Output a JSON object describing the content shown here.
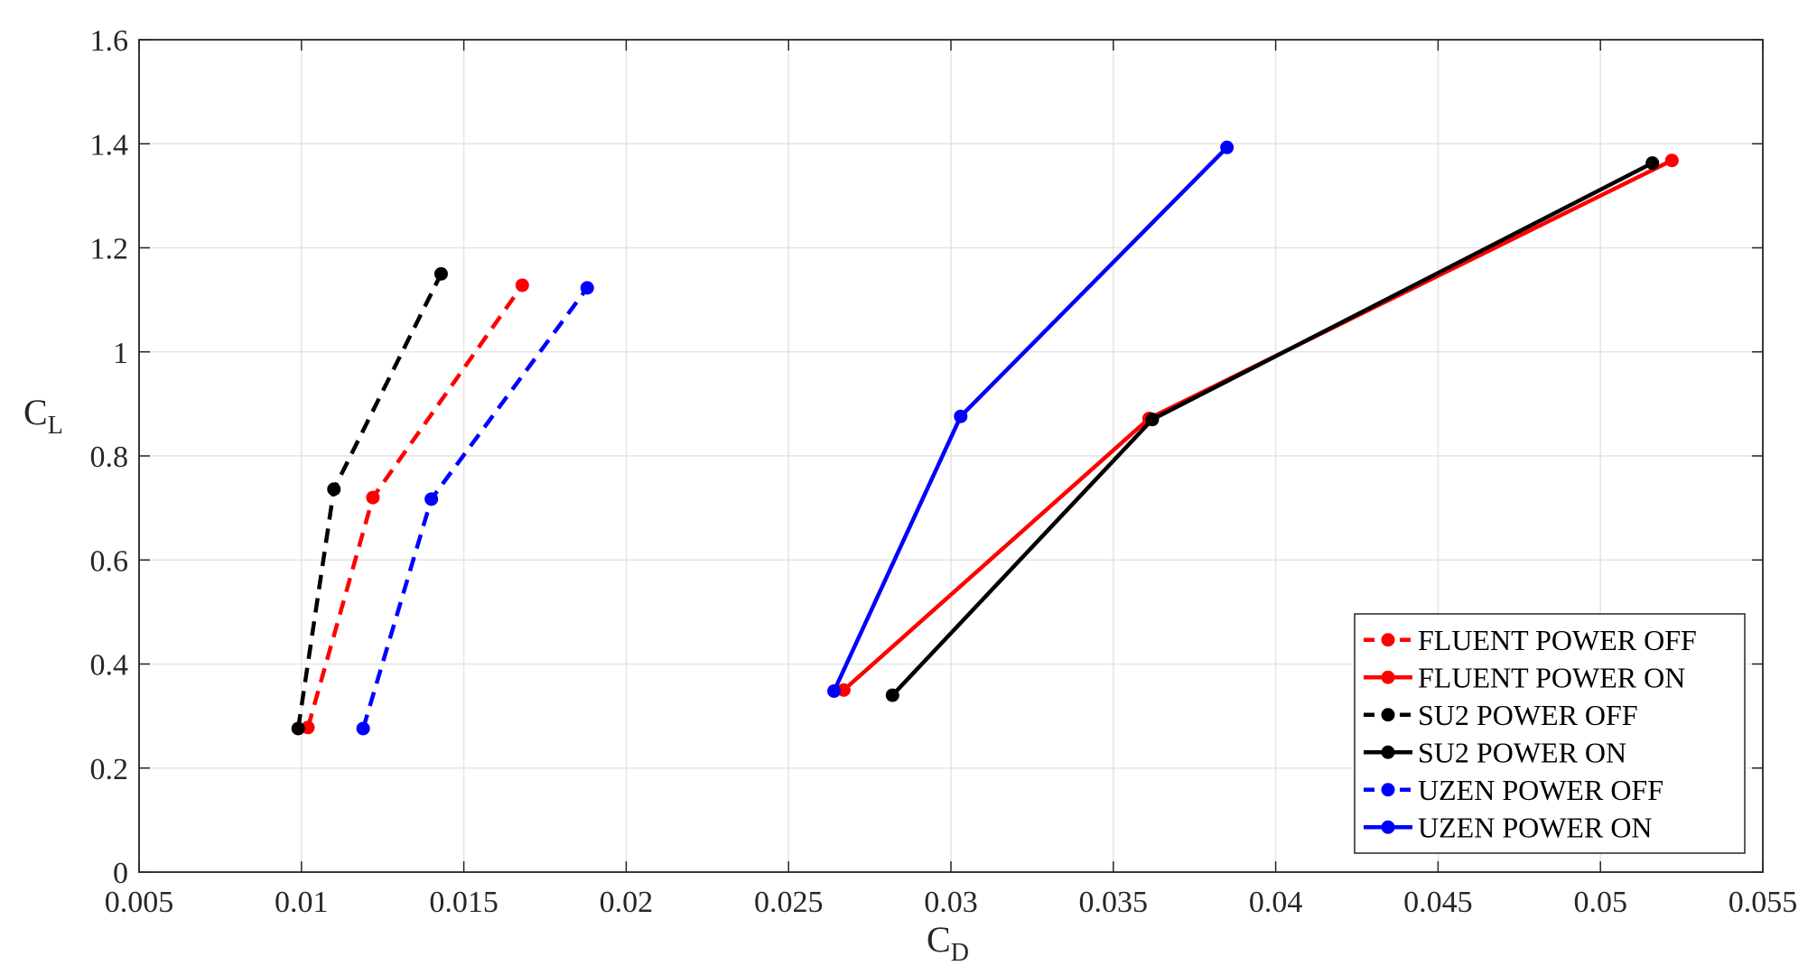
{
  "chart_data": {
    "type": "line",
    "xlabel": "C",
    "xlabel_sub": "D",
    "ylabel": "C",
    "ylabel_sub": "L",
    "xlim": [
      0.005,
      0.055
    ],
    "ylim": [
      0,
      1.6
    ],
    "x_ticks": [
      "0.005",
      "0.01",
      "0.015",
      "0.02",
      "0.025",
      "0.03",
      "0.035",
      "0.04",
      "0.045",
      "0.05",
      "0.055"
    ],
    "y_ticks": [
      "0",
      "0.2",
      "0.4",
      "0.6",
      "0.8",
      "1",
      "1.2",
      "1.4",
      "1.6"
    ],
    "grid": true,
    "legend_position": "bottom-right",
    "series": [
      {
        "name": "FLUENT POWER OFF",
        "color": "#ff0000",
        "dashed": true,
        "points": [
          [
            0.0102,
            0.278
          ],
          [
            0.0122,
            0.72
          ],
          [
            0.0168,
            1.128
          ]
        ]
      },
      {
        "name": "FLUENT POWER ON",
        "color": "#ff0000",
        "dashed": false,
        "points": [
          [
            0.0267,
            0.35
          ],
          [
            0.0361,
            0.872
          ],
          [
            0.0522,
            1.368
          ]
        ]
      },
      {
        "name": "SU2 POWER OFF",
        "color": "#000000",
        "dashed": true,
        "points": [
          [
            0.0099,
            0.276
          ],
          [
            0.011,
            0.736
          ],
          [
            0.0143,
            1.15
          ]
        ]
      },
      {
        "name": "SU2 POWER ON",
        "color": "#000000",
        "dashed": false,
        "points": [
          [
            0.0282,
            0.34
          ],
          [
            0.0362,
            0.87
          ],
          [
            0.0516,
            1.363
          ]
        ]
      },
      {
        "name": "UZEN POWER OFF",
        "color": "#0000ff",
        "dashed": true,
        "points": [
          [
            0.0119,
            0.276
          ],
          [
            0.014,
            0.717
          ],
          [
            0.0188,
            1.123
          ]
        ]
      },
      {
        "name": "UZEN POWER ON",
        "color": "#0000ff",
        "dashed": false,
        "points": [
          [
            0.0264,
            0.348
          ],
          [
            0.0303,
            0.876
          ],
          [
            0.0385,
            1.393
          ]
        ]
      }
    ]
  }
}
